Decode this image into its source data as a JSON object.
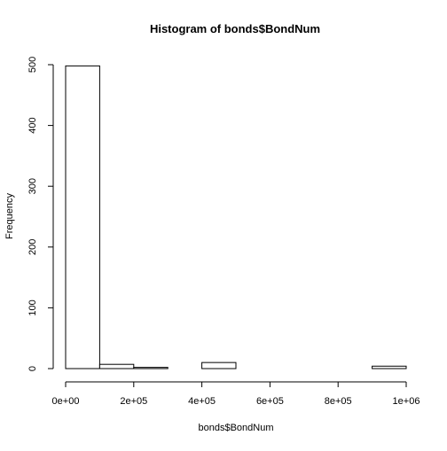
{
  "chart_data": {
    "type": "bar",
    "title": "Histogram of bonds$BondNum",
    "xlabel": "bonds$BondNum",
    "ylabel": "Frequency",
    "bins": [
      {
        "start": 0,
        "end": 100000,
        "count": 498
      },
      {
        "start": 100000,
        "end": 200000,
        "count": 7
      },
      {
        "start": 200000,
        "end": 300000,
        "count": 2
      },
      {
        "start": 300000,
        "end": 400000,
        "count": 0
      },
      {
        "start": 400000,
        "end": 500000,
        "count": 10
      },
      {
        "start": 500000,
        "end": 600000,
        "count": 0
      },
      {
        "start": 600000,
        "end": 700000,
        "count": 0
      },
      {
        "start": 700000,
        "end": 800000,
        "count": 0
      },
      {
        "start": 800000,
        "end": 900000,
        "count": 0
      },
      {
        "start": 900000,
        "end": 1000000,
        "count": 4
      }
    ],
    "xlim": [
      0,
      1000000
    ],
    "ylim": [
      0,
      500
    ],
    "x_ticks": [
      {
        "value": 0,
        "label": "0e+00"
      },
      {
        "value": 200000,
        "label": "2e+05"
      },
      {
        "value": 400000,
        "label": "4e+05"
      },
      {
        "value": 600000,
        "label": "6e+05"
      },
      {
        "value": 800000,
        "label": "8e+05"
      },
      {
        "value": 1000000,
        "label": "1e+06"
      }
    ],
    "y_ticks": [
      {
        "value": 0,
        "label": "0"
      },
      {
        "value": 100,
        "label": "100"
      },
      {
        "value": 200,
        "label": "200"
      },
      {
        "value": 300,
        "label": "300"
      },
      {
        "value": 400,
        "label": "400"
      },
      {
        "value": 500,
        "label": "500"
      }
    ],
    "grid": false,
    "legend": "none"
  }
}
